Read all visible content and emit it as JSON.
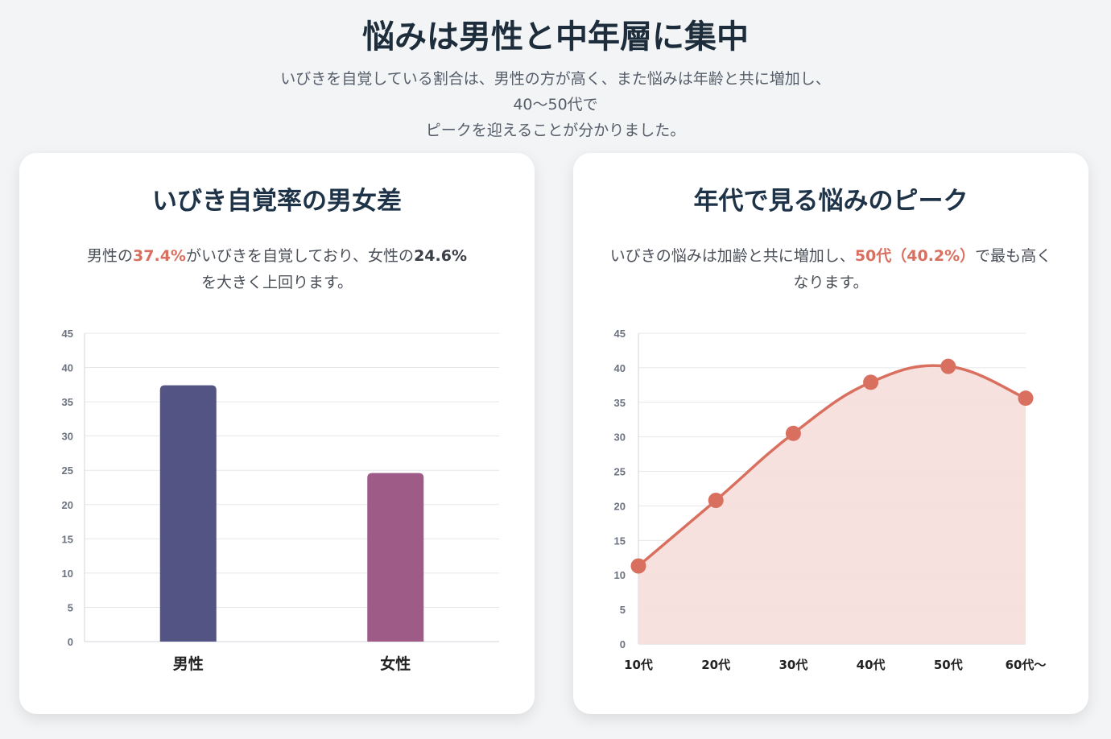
{
  "header": {
    "title": "悩みは男性と中年層に集中",
    "subtitle_line1": "いびきを自覚している割合は、男性の方が高く、また悩みは年齢と共に増加し、40〜50代で",
    "subtitle_line2": "ピークを迎えることが分かりました。"
  },
  "left_card": {
    "desc_pre": "男性の",
    "desc_hl": "37.4%",
    "desc_mid": "がいびきを自覚しており、女性の",
    "desc_bold": "24.6%",
    "desc_post": "を大きく上回ります。"
  },
  "right_card": {
    "desc_pre": "いびきの悩みは加齢と共に増加し、",
    "desc_hl": "50代（40.2%）",
    "desc_post": "で最も高くなります。"
  },
  "chart_data": [
    {
      "type": "bar",
      "title": "いびき自覚率の男女差",
      "categories": [
        "男性",
        "女性"
      ],
      "values": [
        37.4,
        24.6
      ],
      "colors": [
        "#535484",
        "#9f5b87"
      ],
      "ylim": [
        0,
        45
      ],
      "yticks": [
        0,
        5,
        10,
        15,
        20,
        25,
        30,
        35,
        40,
        45
      ],
      "grid": true
    },
    {
      "type": "area",
      "title": "年代で見る悩みのピーク",
      "categories": [
        "10代",
        "20代",
        "30代",
        "40代",
        "50代",
        "60代〜"
      ],
      "values": [
        11.3,
        20.8,
        30.5,
        37.9,
        40.2,
        35.6
      ],
      "line_color": "#d9705f",
      "fill_color": "#f6dedb",
      "ylim": [
        0,
        45
      ],
      "yticks": [
        0,
        5,
        10,
        15,
        20,
        25,
        30,
        35,
        40,
        45
      ],
      "grid": true
    }
  ]
}
